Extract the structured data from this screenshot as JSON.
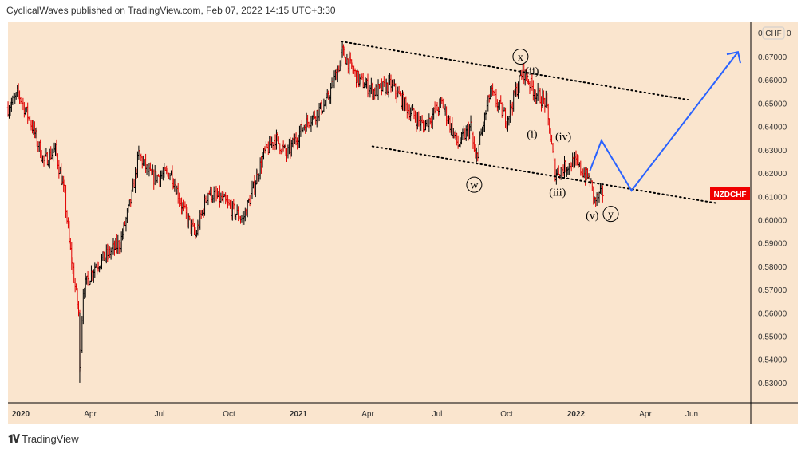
{
  "header": {
    "title": "CyclicalWaves published on TradingView.com, Feb 07, 2022 14:15 UTC+3:30"
  },
  "footer": {
    "brand": "TradingView"
  },
  "colors": {
    "background": "#fae5ce",
    "up": "#000000",
    "down": "#e00000",
    "projection": "#2962ff",
    "symbol_badge": "#f00000"
  },
  "chart_data": {
    "type": "ohlc",
    "symbol": "NZDCHF",
    "currency": "CHF",
    "currency_label": "CHF",
    "x_unit": "months since Jan 2020",
    "x_ticks": [
      "2020",
      "Apr",
      "Jul",
      "Oct",
      "2021",
      "Apr",
      "Jul",
      "Oct",
      "2022",
      "Apr",
      "Jun"
    ],
    "x_tick_months": [
      0,
      3,
      6,
      9,
      12,
      15,
      18,
      21,
      24,
      27,
      29
    ],
    "y_ticks": [
      "0.67000",
      "0.66000",
      "0.65000",
      "0.64000",
      "0.63000",
      "0.62000",
      "0.61000",
      "0.60000",
      "0.59000",
      "0.58000",
      "0.57000",
      "0.56000",
      "0.55000",
      "0.54000",
      "0.53000"
    ],
    "ylim": [
      0.525,
      0.684
    ],
    "xlim": [
      -0.55,
      31.6
    ],
    "price_path": [
      [
        -0.55,
        0.648
      ],
      [
        -0.1,
        0.654
      ],
      [
        0.5,
        0.64
      ],
      [
        1.0,
        0.625
      ],
      [
        1.5,
        0.63
      ],
      [
        1.9,
        0.61
      ],
      [
        2.1,
        0.59
      ],
      [
        2.5,
        0.56
      ],
      [
        2.55,
        0.535
      ],
      [
        2.7,
        0.57
      ],
      [
        3.2,
        0.58
      ],
      [
        4.3,
        0.59
      ],
      [
        4.8,
        0.61
      ],
      [
        5.1,
        0.628
      ],
      [
        5.65,
        0.618
      ],
      [
        6.5,
        0.62
      ],
      [
        7.0,
        0.605
      ],
      [
        7.55,
        0.593
      ],
      [
        8.1,
        0.612
      ],
      [
        8.75,
        0.608
      ],
      [
        9.6,
        0.6
      ],
      [
        10.1,
        0.615
      ],
      [
        10.5,
        0.628
      ],
      [
        11.0,
        0.635
      ],
      [
        11.5,
        0.628
      ],
      [
        12.2,
        0.64
      ],
      [
        13.2,
        0.65
      ],
      [
        13.75,
        0.666
      ],
      [
        13.9,
        0.672
      ],
      [
        14.6,
        0.66
      ],
      [
        15.3,
        0.655
      ],
      [
        16.0,
        0.658
      ],
      [
        16.7,
        0.648
      ],
      [
        17.4,
        0.64
      ],
      [
        18.2,
        0.65
      ],
      [
        18.9,
        0.632
      ],
      [
        19.45,
        0.64
      ],
      [
        19.65,
        0.625
      ],
      [
        20.3,
        0.655
      ],
      [
        21.0,
        0.643
      ],
      [
        21.7,
        0.664
      ],
      [
        22.2,
        0.655
      ],
      [
        22.7,
        0.65
      ],
      [
        23.1,
        0.62
      ],
      [
        23.9,
        0.625
      ],
      [
        24.6,
        0.617
      ],
      [
        24.8,
        0.608
      ],
      [
        25.2,
        0.612
      ]
    ],
    "projection": [
      [
        24.6,
        0.621
      ],
      [
        25.1,
        0.634
      ],
      [
        26.4,
        0.6125
      ],
      [
        31.0,
        0.672
      ]
    ],
    "trendlines": [
      {
        "name": "upper",
        "points": [
          [
            13.86,
            0.6765
          ],
          [
            28.83,
            0.6515
          ]
        ]
      },
      {
        "name": "lower",
        "points": [
          [
            15.2,
            0.6315
          ],
          [
            30.14,
            0.607
          ]
        ]
      }
    ],
    "wave_labels": [
      {
        "text": "x",
        "circled": true,
        "at": [
          21.6,
          0.67
        ]
      },
      {
        "text": "(ii)",
        "circled": false,
        "at": [
          22.1,
          0.664
        ]
      },
      {
        "text": "(i)",
        "circled": false,
        "at": [
          22.1,
          0.637
        ]
      },
      {
        "text": "(iv)",
        "circled": false,
        "at": [
          23.45,
          0.636
        ]
      },
      {
        "text": "(iii)",
        "circled": false,
        "at": [
          23.2,
          0.612
        ]
      },
      {
        "text": "w",
        "circled": true,
        "at": [
          19.6,
          0.615
        ]
      },
      {
        "text": "(v)",
        "circled": false,
        "at": [
          24.7,
          0.602
        ]
      },
      {
        "text": "y",
        "circled": true,
        "at": [
          25.5,
          0.6025
        ]
      }
    ]
  }
}
